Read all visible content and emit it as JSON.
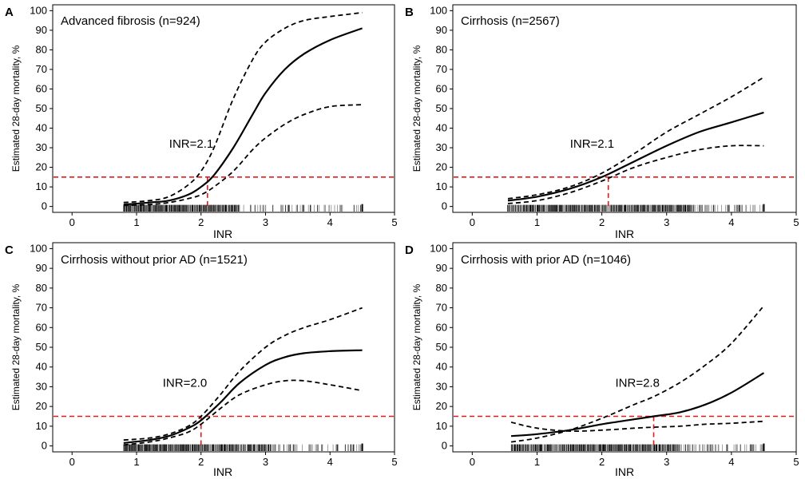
{
  "chart_data": [
    {
      "panel": "A",
      "type": "line",
      "title": "Advanced fibrosis (n=924)",
      "xlabel": "INR",
      "ylabel": "Estimated 28-day mortality, %",
      "xlim": [
        -0.3,
        5.0
      ],
      "ylim": [
        -3,
        103
      ],
      "xticks": [
        0,
        1,
        2,
        3,
        4,
        5
      ],
      "yticks": [
        0,
        10,
        20,
        30,
        40,
        50,
        60,
        70,
        80,
        90,
        100
      ],
      "threshold_y": 15,
      "cutoff_x": 2.1,
      "cutoff_label": "INR=2.1",
      "rug": {
        "start": 0.8,
        "end": 4.5,
        "dense_end": 2.6
      },
      "series": [
        {
          "name": "estimate",
          "style": "solid",
          "x": [
            0.8,
            1.2,
            1.5,
            1.8,
            2.0,
            2.2,
            2.5,
            2.8,
            3.0,
            3.3,
            3.6,
            4.0,
            4.5
          ],
          "y": [
            1,
            2,
            3,
            6,
            10,
            16,
            30,
            47,
            58,
            70,
            78,
            85,
            91
          ]
        },
        {
          "name": "upper",
          "style": "dashed",
          "x": [
            0.8,
            1.2,
            1.5,
            1.8,
            2.0,
            2.2,
            2.5,
            2.8,
            3.0,
            3.3,
            3.6,
            4.0,
            4.5
          ],
          "y": [
            2,
            3,
            5,
            11,
            18,
            30,
            55,
            75,
            84,
            91,
            95,
            97,
            99
          ]
        },
        {
          "name": "lower",
          "style": "dashed",
          "x": [
            0.8,
            1.2,
            1.5,
            1.8,
            2.0,
            2.2,
            2.5,
            2.8,
            3.0,
            3.3,
            3.6,
            4.0,
            4.5
          ],
          "y": [
            0.5,
            1,
            2,
            4,
            6,
            10,
            18,
            29,
            35,
            42,
            47,
            51,
            52
          ]
        }
      ]
    },
    {
      "panel": "B",
      "type": "line",
      "title": "Cirrhosis (n=2567)",
      "xlabel": "INR",
      "ylabel": "Estimated 28-day mortality, %",
      "xlim": [
        -0.3,
        5.0
      ],
      "ylim": [
        -3,
        103
      ],
      "xticks": [
        0,
        1,
        2,
        3,
        4,
        5
      ],
      "yticks": [
        0,
        10,
        20,
        30,
        40,
        50,
        60,
        70,
        80,
        90,
        100
      ],
      "threshold_y": 15,
      "cutoff_x": 2.1,
      "cutoff_label": "INR=2.1",
      "rug": {
        "start": 0.55,
        "end": 4.5,
        "dense_end": 3.4
      },
      "series": [
        {
          "name": "estimate",
          "style": "solid",
          "x": [
            0.55,
            1.0,
            1.5,
            2.0,
            2.5,
            3.0,
            3.5,
            4.0,
            4.5
          ],
          "y": [
            3,
            5,
            9,
            15,
            23,
            31,
            38,
            43,
            48
          ]
        },
        {
          "name": "upper",
          "style": "dashed",
          "x": [
            0.55,
            1.0,
            1.5,
            2.0,
            2.5,
            3.0,
            3.5,
            4.0,
            4.5
          ],
          "y": [
            4,
            6,
            10,
            17,
            27,
            38,
            47,
            56,
            66
          ]
        },
        {
          "name": "lower",
          "style": "dashed",
          "x": [
            0.55,
            1.0,
            1.5,
            2.0,
            2.5,
            3.0,
            3.5,
            4.0,
            4.5
          ],
          "y": [
            1.5,
            3,
            7,
            13,
            20,
            25,
            29,
            31,
            31
          ]
        }
      ]
    },
    {
      "panel": "C",
      "type": "line",
      "title": "Cirrhosis without prior AD (n=1521)",
      "xlabel": "INR",
      "ylabel": "Estimated 28-day mortality, %",
      "xlim": [
        -0.3,
        5.0
      ],
      "ylim": [
        -3,
        103
      ],
      "xticks": [
        0,
        1,
        2,
        3,
        4,
        5
      ],
      "yticks": [
        0,
        10,
        20,
        30,
        40,
        50,
        60,
        70,
        80,
        90,
        100
      ],
      "threshold_y": 15,
      "cutoff_x": 2.0,
      "cutoff_label": "INR=2.0",
      "rug": {
        "start": 0.8,
        "end": 4.5,
        "dense_end": 3.1
      },
      "series": [
        {
          "name": "estimate",
          "style": "solid",
          "x": [
            0.8,
            1.2,
            1.5,
            1.8,
            2.0,
            2.3,
            2.6,
            3.0,
            3.3,
            3.6,
            4.0,
            4.5
          ],
          "y": [
            1.5,
            3,
            5,
            9,
            13,
            22,
            32,
            41,
            45,
            47,
            48,
            48.5
          ]
        },
        {
          "name": "upper",
          "style": "dashed",
          "x": [
            0.8,
            1.2,
            1.5,
            1.8,
            2.0,
            2.3,
            2.6,
            3.0,
            3.3,
            3.6,
            4.0,
            4.5
          ],
          "y": [
            3,
            4,
            6,
            10,
            15,
            26,
            38,
            50,
            56,
            60,
            64,
            70
          ]
        },
        {
          "name": "lower",
          "style": "dashed",
          "x": [
            0.8,
            1.2,
            1.5,
            1.8,
            2.0,
            2.3,
            2.6,
            3.0,
            3.3,
            3.6,
            4.0,
            4.5
          ],
          "y": [
            0.5,
            2,
            4,
            7,
            11,
            19,
            26,
            31,
            33,
            33,
            31,
            28
          ]
        }
      ]
    },
    {
      "panel": "D",
      "type": "line",
      "title": "Cirrhosis with prior AD (n=1046)",
      "xlabel": "INR",
      "ylabel": "Estimated 28-day mortality, %",
      "xlim": [
        -0.3,
        5.0
      ],
      "ylim": [
        -3,
        103
      ],
      "xticks": [
        0,
        1,
        2,
        3,
        4,
        5
      ],
      "yticks": [
        0,
        10,
        20,
        30,
        40,
        50,
        60,
        70,
        80,
        90,
        100
      ],
      "threshold_y": 15,
      "cutoff_x": 2.8,
      "cutoff_label": "INR=2.8",
      "rug": {
        "start": 0.6,
        "end": 4.5,
        "dense_end": 3.2
      },
      "series": [
        {
          "name": "estimate",
          "style": "solid",
          "x": [
            0.6,
            1.0,
            1.5,
            2.0,
            2.5,
            2.8,
            3.2,
            3.6,
            4.0,
            4.5
          ],
          "y": [
            5,
            6,
            8,
            11,
            13.5,
            15,
            17,
            21,
            27,
            37
          ]
        },
        {
          "name": "upper",
          "style": "dashed",
          "x": [
            0.6,
            1.0,
            1.5,
            2.0,
            2.5,
            2.8,
            3.2,
            3.6,
            4.0,
            4.5
          ],
          "y": [
            2,
            4,
            8,
            14,
            21,
            25,
            32,
            41,
            52,
            71
          ]
        },
        {
          "name": "lower",
          "style": "dashed",
          "x": [
            0.6,
            1.0,
            1.5,
            2.0,
            2.5,
            2.8,
            3.2,
            3.6,
            4.0,
            4.5
          ],
          "y": [
            12,
            9,
            7.5,
            8,
            9,
            9.5,
            10,
            11,
            11.5,
            12.5
          ]
        }
      ]
    }
  ]
}
